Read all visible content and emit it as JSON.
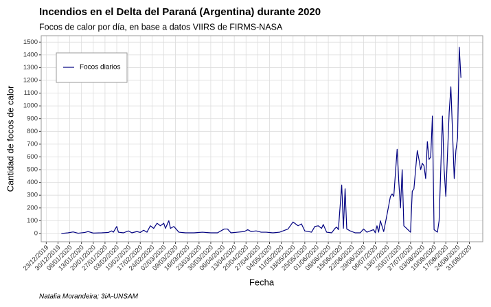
{
  "chart_data": {
    "type": "line",
    "title": "Incendios en el Delta del Paraná (Argentina) durante 2020",
    "subtitle": "Focos de calor por día, en base a datos VIIRS de FIRMS-NASA",
    "x_label": "Fecha",
    "y_label": "Cantidad de focos de calor",
    "caption": "Natalia Morandeira; 3iA-UNSAM",
    "legend": "top-left",
    "grid": true,
    "x": [
      "01/01/2020",
      "05/01/2020",
      "08/01/2020",
      "11/01/2020",
      "15/01/2020",
      "17/01/2020",
      "20/01/2020",
      "25/01/2020",
      "29/01/2020",
      "31/01/2020",
      "01/02/2020",
      "03/02/2020",
      "04/02/2020",
      "07/02/2020",
      "10/02/2020",
      "12/02/2020",
      "15/02/2020",
      "17/02/2020",
      "19/02/2020",
      "21/02/2020",
      "23/02/2020",
      "25/02/2020",
      "27/02/2020",
      "29/02/2020",
      "02/03/2020",
      "03/03/2020",
      "05/03/2020",
      "06/03/2020",
      "08/03/2020",
      "11/03/2020",
      "15/03/2020",
      "20/03/2020",
      "25/03/2020",
      "30/03/2020",
      "03/04/2020",
      "07/04/2020",
      "09/04/2020",
      "11/04/2020",
      "15/04/2020",
      "19/04/2020",
      "21/04/2020",
      "23/04/2020",
      "26/04/2020",
      "29/04/2020",
      "02/05/2020",
      "06/05/2020",
      "10/05/2020",
      "13/05/2020",
      "15/05/2020",
      "18/05/2020",
      "21/05/2020",
      "23/05/2020",
      "25/05/2020",
      "29/05/2020",
      "31/05/2020",
      "02/06/2020",
      "04/06/2020",
      "05/06/2020",
      "07/06/2020",
      "10/06/2020",
      "12/06/2020",
      "13/06/2020",
      "14/06/2020",
      "16/06/2020",
      "17/06/2020",
      "18/06/2020",
      "19/06/2020",
      "21/06/2020",
      "24/06/2020",
      "27/06/2020",
      "29/06/2020",
      "01/07/2020",
      "03/07/2020",
      "05/07/2020",
      "06/07/2020",
      "07/07/2020",
      "08/07/2020",
      "09/07/2020",
      "11/07/2020",
      "13/07/2020",
      "15/07/2020",
      "16/07/2020",
      "17/07/2020",
      "19/07/2020",
      "20/07/2020",
      "21/07/2020",
      "22/07/2020",
      "23/07/2020",
      "25/07/2020",
      "27/07/2020",
      "28/07/2020",
      "29/07/2020",
      "31/07/2020",
      "01/08/2020",
      "02/08/2020",
      "03/08/2020",
      "04/08/2020",
      "05/08/2020",
      "06/08/2020",
      "07/08/2020",
      "08/08/2020",
      "09/08/2020",
      "10/08/2020",
      "12/08/2020",
      "13/08/2020",
      "15/08/2020",
      "16/08/2020",
      "17/08/2020",
      "19/08/2020",
      "20/08/2020",
      "22/08/2020",
      "23/08/2020",
      "24/08/2020",
      "25/08/2020",
      "26/08/2020"
    ],
    "series": [
      {
        "name": "Focos diarios",
        "color": "#000080",
        "values": [
          0,
          5,
          12,
          2,
          8,
          15,
          3,
          5,
          8,
          20,
          10,
          55,
          10,
          5,
          20,
          5,
          15,
          8,
          25,
          10,
          60,
          40,
          80,
          60,
          80,
          40,
          100,
          40,
          55,
          10,
          5,
          5,
          10,
          5,
          5,
          35,
          35,
          5,
          10,
          15,
          30,
          15,
          20,
          10,
          10,
          5,
          10,
          25,
          35,
          90,
          60,
          75,
          20,
          10,
          55,
          60,
          40,
          70,
          10,
          5,
          40,
          50,
          30,
          380,
          40,
          350,
          35,
          20,
          5,
          5,
          35,
          10,
          20,
          30,
          5,
          60,
          10,
          100,
          15,
          150,
          290,
          310,
          290,
          660,
          400,
          200,
          500,
          60,
          35,
          10,
          330,
          350,
          650,
          580,
          500,
          550,
          530,
          430,
          720,
          580,
          600,
          920,
          30,
          10,
          100,
          920,
          500,
          290,
          950,
          1150,
          430,
          650,
          750,
          1460,
          1220
        ]
      }
    ],
    "xlim": [
      "20/12/2019",
      "08/09/2020"
    ],
    "xticks": [
      "23/12/2019",
      "30/12/2019",
      "06/01/2020",
      "13/01/2020",
      "20/01/2020",
      "27/01/2020",
      "03/02/2020",
      "10/02/2020",
      "17/02/2020",
      "24/02/2020",
      "02/03/2020",
      "09/03/2020",
      "16/03/2020",
      "23/03/2020",
      "30/03/2020",
      "06/04/2020",
      "13/04/2020",
      "20/04/2020",
      "27/04/2020",
      "04/05/2020",
      "11/05/2020",
      "18/05/2020",
      "25/05/2020",
      "01/06/2020",
      "08/06/2020",
      "15/06/2020",
      "22/06/2020",
      "29/06/2020",
      "06/07/2020",
      "13/07/2020",
      "20/07/2020",
      "27/07/2020",
      "03/08/2020",
      "10/08/2020",
      "17/08/2020",
      "24/08/2020",
      "31/08/2020"
    ],
    "ylim": [
      -65,
      1550
    ],
    "yticks": [
      0,
      100,
      200,
      300,
      400,
      500,
      600,
      700,
      800,
      900,
      1000,
      1100,
      1200,
      1300,
      1400,
      1500
    ]
  }
}
